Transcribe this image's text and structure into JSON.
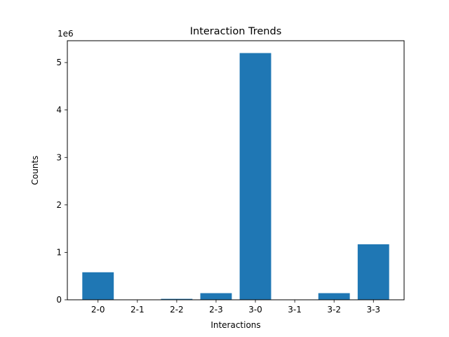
{
  "chart_data": {
    "type": "bar",
    "title": "Interaction Trends",
    "xlabel": "Interactions",
    "ylabel": "Counts",
    "y_offset_label": "1e6",
    "categories": [
      "2-0",
      "2-1",
      "2-2",
      "2-3",
      "3-0",
      "3-1",
      "3-2",
      "3-3"
    ],
    "values": [
      580000,
      0,
      20000,
      140000,
      5200000,
      0,
      140000,
      1170000
    ],
    "ylim": [
      0,
      5460000
    ],
    "yticks": [
      0,
      1,
      2,
      3,
      4,
      5
    ],
    "yticks_scale": 1000000,
    "bar_color": "#1f77b4",
    "grid": false,
    "legend": "none"
  }
}
